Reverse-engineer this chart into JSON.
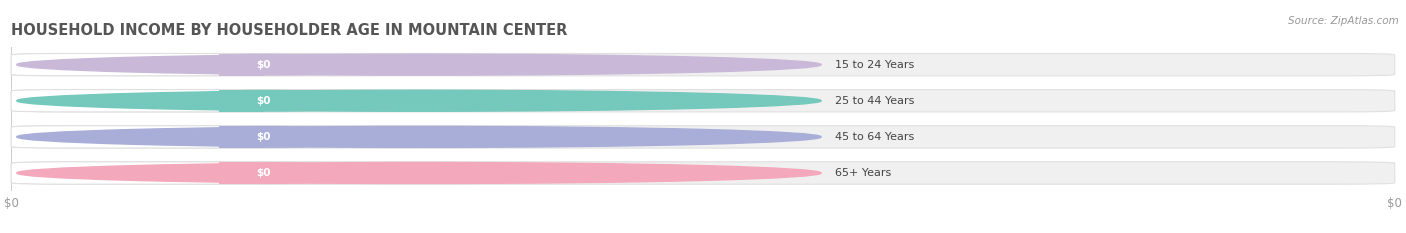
{
  "title": "HOUSEHOLD INCOME BY HOUSEHOLDER AGE IN MOUNTAIN CENTER",
  "source": "Source: ZipAtlas.com",
  "categories": [
    "15 to 24 Years",
    "25 to 44 Years",
    "45 to 64 Years",
    "65+ Years"
  ],
  "values": [
    0,
    0,
    0,
    0
  ],
  "bar_colors": [
    "#c9b8d8",
    "#74c8bc",
    "#a8aed8",
    "#f4a8bc"
  ],
  "bar_bg_color": "#f0f0f0",
  "bar_border_color": "#e0e0e0",
  "tick_label_color": "#999999",
  "title_color": "#555555",
  "source_color": "#999999",
  "background_color": "#ffffff",
  "xlim": [
    0,
    1
  ],
  "xlabel_ticks": [
    "$0",
    "$0"
  ],
  "xlabel_tick_positions": [
    0,
    1
  ]
}
